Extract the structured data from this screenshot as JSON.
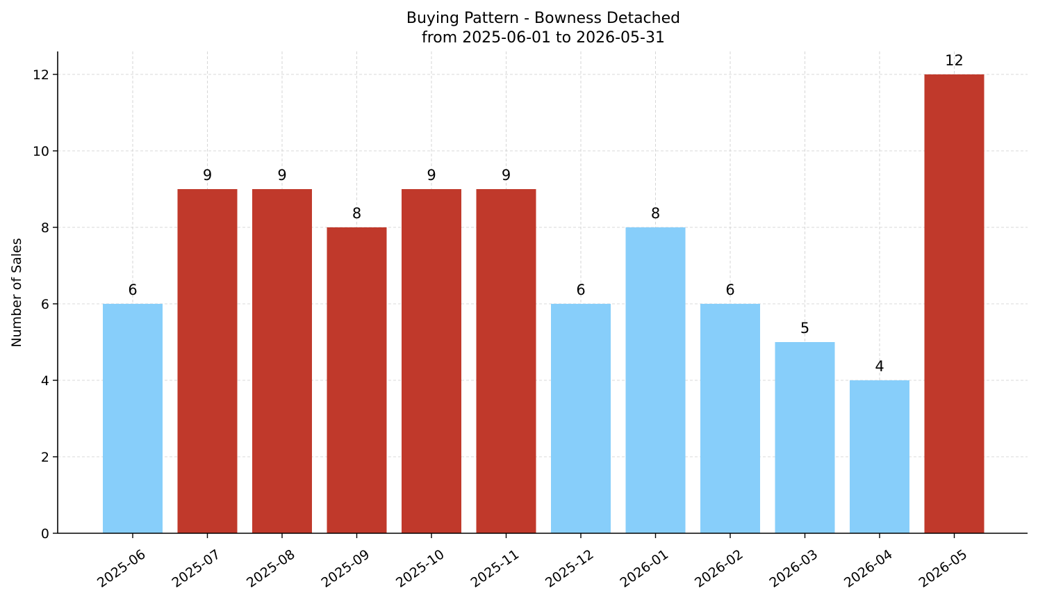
{
  "chart_data": {
    "type": "bar",
    "title": "Buying Pattern - Bowness Detached",
    "subtitle": "from 2025-06-01 to 2026-05-31",
    "xlabel": "",
    "ylabel": "Number of Sales",
    "ylim": [
      0,
      12.6
    ],
    "yticks": [
      0,
      2,
      4,
      6,
      8,
      10,
      12
    ],
    "grid": true,
    "categories": [
      "2025-06",
      "2025-07",
      "2025-08",
      "2025-09",
      "2025-10",
      "2025-11",
      "2025-12",
      "2026-01",
      "2026-02",
      "2026-03",
      "2026-04",
      "2026-05"
    ],
    "values": [
      6,
      9,
      9,
      8,
      9,
      9,
      6,
      8,
      6,
      5,
      4,
      12
    ],
    "highlighted": [
      false,
      true,
      true,
      true,
      true,
      true,
      false,
      false,
      false,
      false,
      false,
      true
    ],
    "colors": {
      "normal": "#87cefa",
      "highlight": "#c0392b"
    }
  }
}
